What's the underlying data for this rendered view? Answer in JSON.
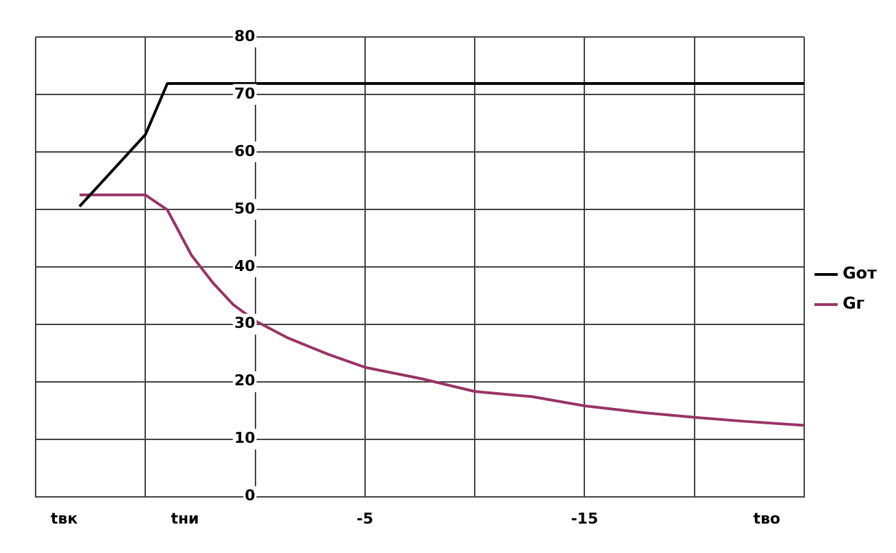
{
  "chart_data": {
    "type": "line",
    "xlim": [
      10,
      -25
    ],
    "xticks": [
      {
        "value": 10,
        "label": null
      },
      {
        "value": 8.7,
        "label": "tвк"
      },
      {
        "value": 5,
        "label": null
      },
      {
        "value": 3.2,
        "label": "tни"
      },
      -5,
      {
        "value": -10,
        "label": null
      },
      -15,
      {
        "value": -20,
        "label": null
      },
      {
        "value": -23.3,
        "label": "tво"
      },
      {
        "value": -25,
        "label": null
      }
    ],
    "ylim": [
      0,
      80
    ],
    "yticks": [
      0,
      10,
      20,
      30,
      40,
      50,
      60,
      70,
      80
    ],
    "grid": true,
    "legend": "right",
    "marker": "none",
    "line_style": "solid",
    "series": [
      {
        "name": "Gот",
        "color": "#000000",
        "x": [
          8.0,
          5,
          4.0,
          -25
        ],
        "values": [
          50.5,
          63.0,
          71.9,
          71.9
        ]
      },
      {
        "name": "Gг",
        "color": "#993366",
        "x": [
          8.0,
          5,
          4.0,
          2.9,
          1.9,
          1.0,
          0,
          -1.5,
          -3.3,
          -5,
          -7.6,
          -10,
          -12.6,
          -15,
          -17.7,
          -20,
          -22.3,
          -25
        ],
        "values": [
          52.5,
          52.5,
          49.9,
          42,
          37.1,
          33.4,
          30.6,
          27.6,
          24.8,
          22.5,
          20.5,
          18.3,
          17.4,
          15.8,
          14.6,
          13.8,
          13.1,
          12.4
        ]
      }
    ]
  }
}
